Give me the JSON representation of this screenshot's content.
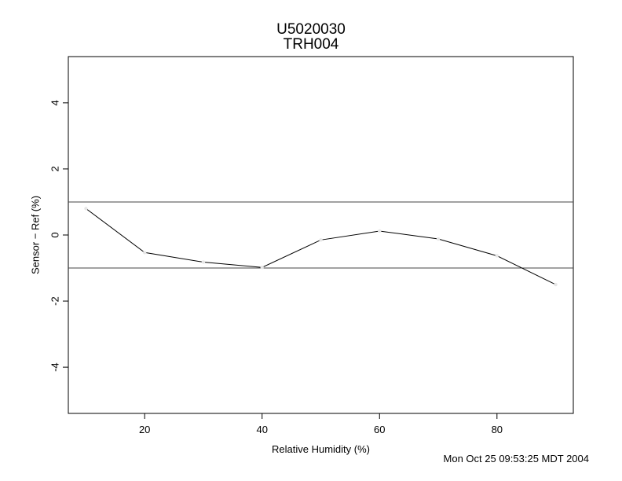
{
  "chart_data": {
    "type": "line",
    "title": "U5020030",
    "subtitle": "TRH004",
    "xlabel": "Relative Humidity (%)",
    "ylabel": "Sensor − Ref (%)",
    "xlim": [
      7,
      93
    ],
    "ylim": [
      -5.4,
      5.4
    ],
    "x_ticks": [
      20,
      40,
      60,
      80
    ],
    "y_ticks": [
      -4,
      -2,
      0,
      2,
      4
    ],
    "reference_lines": [
      1,
      -1
    ],
    "grid": false,
    "series": [
      {
        "x": [
          10,
          20,
          30,
          40,
          50,
          60,
          70,
          80,
          90
        ],
        "y": [
          0.8,
          -0.53,
          -0.82,
          -0.98,
          -0.15,
          0.12,
          -0.12,
          -0.63,
          -1.5
        ]
      }
    ]
  },
  "footer": {
    "timestamp": "Mon Oct 25 09:53:25 MDT 2004"
  }
}
